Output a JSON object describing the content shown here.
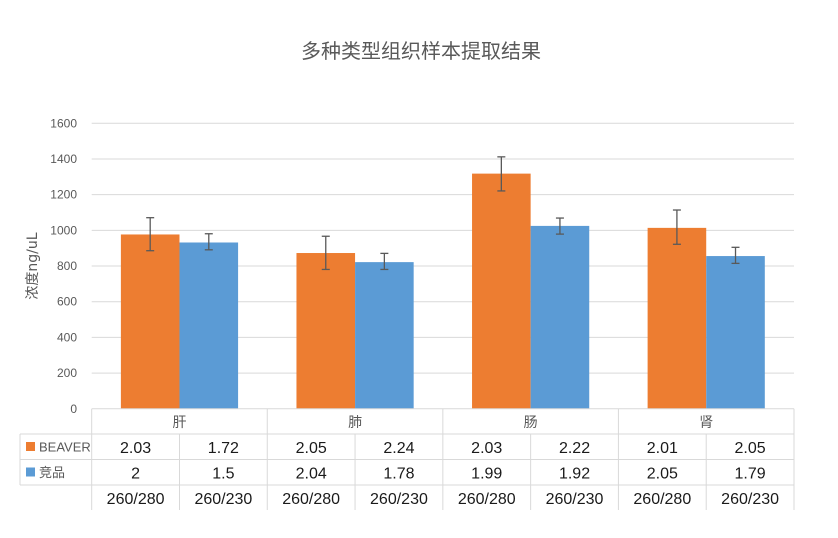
{
  "chart_data": {
    "type": "bar",
    "title": "多种类型组织样本提取结果",
    "xlabel": "",
    "ylabel": "浓度ng/uL",
    "ylim": [
      0,
      1600
    ],
    "yticks": [
      0,
      200,
      400,
      600,
      800,
      1000,
      1200,
      1400,
      1600
    ],
    "grid": true,
    "legend_position": "data-table",
    "categories": [
      "肝",
      "肺",
      "肠",
      "肾"
    ],
    "series": [
      {
        "name": "BEAVER",
        "color": "#ED7D31",
        "values": [
          977,
          873,
          1318,
          1014
        ],
        "error_low": [
          886,
          781,
          1221,
          922
        ],
        "error_high": [
          1071,
          967,
          1412,
          1114
        ]
      },
      {
        "name": "竞品",
        "color": "#5B9BD5",
        "values": [
          932,
          822,
          1025,
          856
        ],
        "error_low": [
          891,
          781,
          979,
          815
        ],
        "error_high": [
          981,
          871,
          1069,
          905
        ]
      }
    ],
    "data_table": {
      "column_labels": [
        "260/280",
        "260/230",
        "260/280",
        "260/230",
        "260/280",
        "260/230",
        "260/280",
        "260/230"
      ],
      "rows": [
        {
          "name": "BEAVER",
          "values": [
            "2.03",
            "1.72",
            "2.05",
            "2.24",
            "2.03",
            "2.22",
            "2.01",
            "2.05"
          ]
        },
        {
          "name": "竞品",
          "values": [
            "2",
            "1.5",
            "2.04",
            "1.78",
            "1.99",
            "1.92",
            "2.05",
            "1.79"
          ]
        }
      ]
    }
  }
}
